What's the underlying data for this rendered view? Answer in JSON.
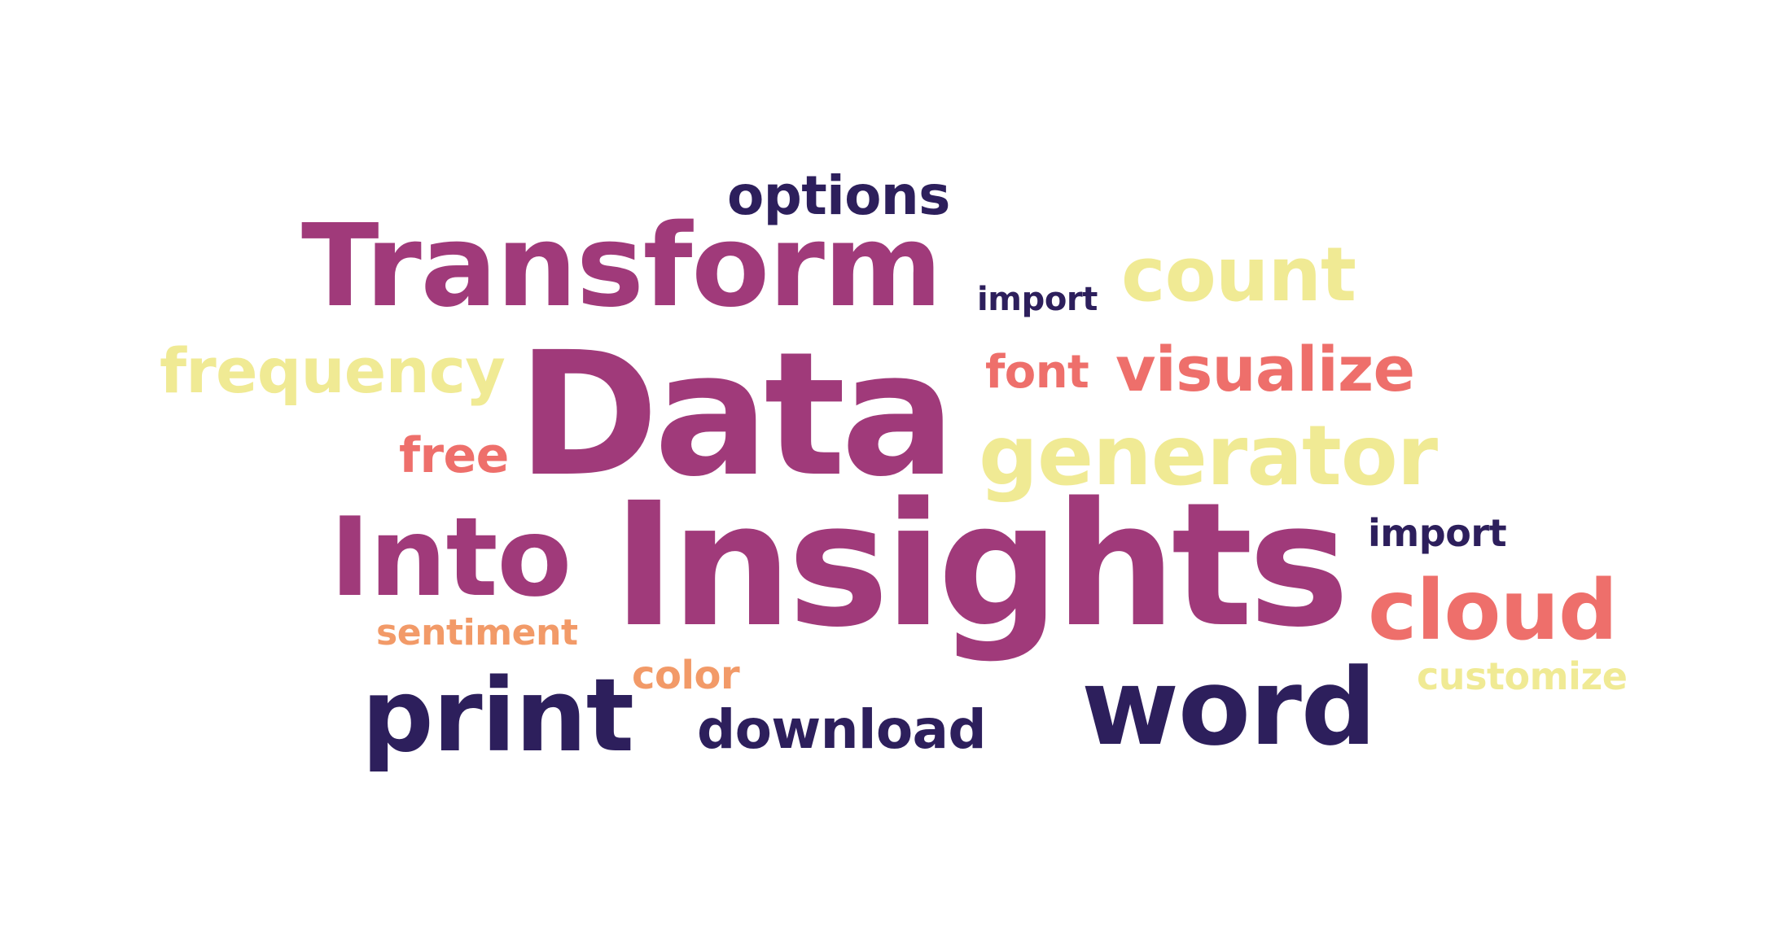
{
  "cloud": {
    "words": {
      "options": "options",
      "transform": "Transform",
      "import_1": "import",
      "count": "count",
      "frequency": "frequency",
      "data": "Data",
      "font": "font",
      "visualize": "visualize",
      "free": "free",
      "generator": "generator",
      "into": "Into",
      "insights": "Insights",
      "import_2": "import",
      "cloud": "cloud",
      "sentiment": "sentiment",
      "color": "color",
      "customize": "customize",
      "print": "print",
      "download": "download",
      "word": "word"
    },
    "palette": {
      "plum": "#a03a7a",
      "navy": "#2d1f5c",
      "yellow": "#f0ea94",
      "coral": "#ee6f6b",
      "peach": "#f29a68"
    }
  }
}
